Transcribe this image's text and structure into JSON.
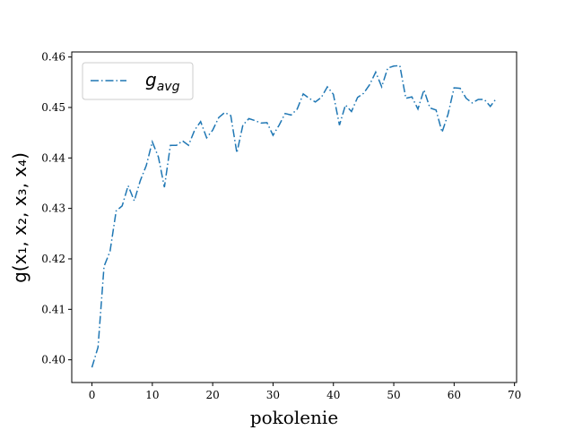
{
  "chart_data": {
    "type": "line",
    "xlabel": "pokolenie",
    "ylabel": "g(x₁, x₂, x₃, x₄)",
    "xlim": [
      -3.35,
      70.35
    ],
    "ylim": [
      0.3955,
      0.461
    ],
    "xticks": [
      0,
      10,
      20,
      30,
      40,
      50,
      60,
      70
    ],
    "yticks": [
      0.4,
      0.41,
      0.42,
      0.43,
      0.44,
      0.45,
      0.46
    ],
    "ytick_labels": [
      "0.40",
      "0.41",
      "0.42",
      "0.43",
      "0.44",
      "0.45",
      "0.46"
    ],
    "grid": false,
    "legend_position": "top-left",
    "series": [
      {
        "name": "g_avg",
        "legend_main": "g",
        "legend_sub": "avg",
        "color": "#1f77b4",
        "line_style": "dashdot",
        "x": [
          0,
          1,
          2,
          3,
          4,
          5,
          6,
          7,
          8,
          9,
          10,
          11,
          12,
          13,
          14,
          15,
          16,
          17,
          18,
          19,
          20,
          21,
          22,
          23,
          24,
          25,
          26,
          27,
          28,
          29,
          30,
          31,
          32,
          33,
          34,
          35,
          36,
          37,
          38,
          39,
          40,
          41,
          42,
          43,
          44,
          45,
          46,
          47,
          48,
          49,
          50,
          51,
          52,
          53,
          54,
          55,
          56,
          57,
          58,
          59,
          60,
          61,
          62,
          63,
          64,
          65,
          66,
          67
        ],
        "y": [
          0.3985,
          0.4025,
          0.4185,
          0.4215,
          0.4295,
          0.4305,
          0.4345,
          0.4315,
          0.4355,
          0.4385,
          0.4432,
          0.4402,
          0.4342,
          0.4425,
          0.4425,
          0.4434,
          0.4425,
          0.4455,
          0.4472,
          0.444,
          0.4455,
          0.448,
          0.449,
          0.4484,
          0.441,
          0.4465,
          0.4478,
          0.4474,
          0.4469,
          0.447,
          0.4445,
          0.4465,
          0.4488,
          0.4485,
          0.4497,
          0.4527,
          0.4518,
          0.4511,
          0.452,
          0.4541,
          0.4526,
          0.4465,
          0.4505,
          0.4492,
          0.452,
          0.4528,
          0.4545,
          0.457,
          0.4541,
          0.4578,
          0.4582,
          0.4583,
          0.4518,
          0.4521,
          0.4497,
          0.4535,
          0.4499,
          0.4495,
          0.4451,
          0.4487,
          0.4539,
          0.4538,
          0.4518,
          0.4509,
          0.4516,
          0.4516,
          0.4502,
          0.4518
        ]
      }
    ]
  }
}
